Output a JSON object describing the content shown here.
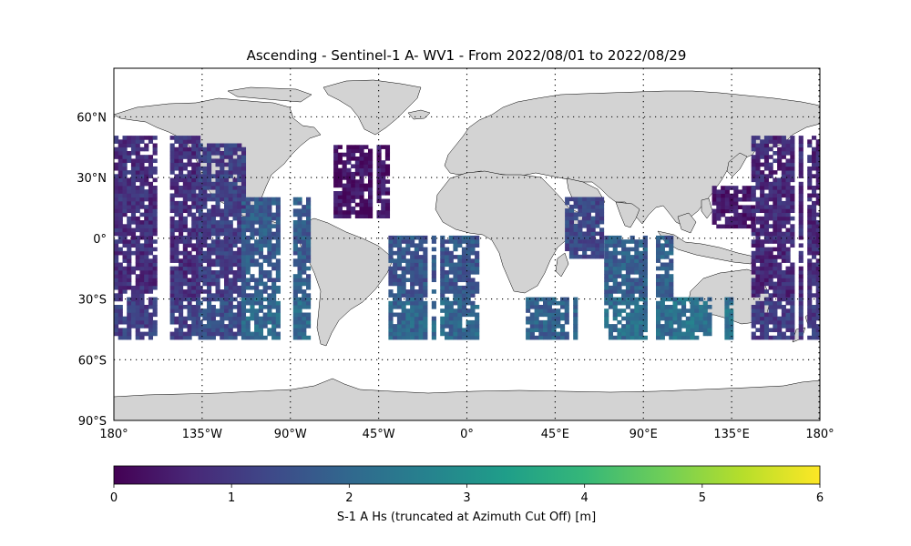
{
  "title": "Ascending - Sentinel-1 A- WV1 - From 2022/08/01 to 2022/08/29",
  "map": {
    "lon_range": [
      -180,
      180
    ],
    "lat_range": [
      -90,
      90
    ],
    "projection": "PlateCarree",
    "land_color": "#d3d3d3",
    "gridlines": "dotted",
    "lat_ticks": [
      {
        "value": 60,
        "label": "60°N"
      },
      {
        "value": 30,
        "label": "30°N"
      },
      {
        "value": 0,
        "label": "0°"
      },
      {
        "value": -30,
        "label": "30°S"
      },
      {
        "value": -60,
        "label": "60°S"
      },
      {
        "value": -90,
        "label": "90°S"
      }
    ],
    "lon_ticks": [
      {
        "value": -180,
        "label": "180°"
      },
      {
        "value": -135,
        "label": "135°W"
      },
      {
        "value": -90,
        "label": "90°W"
      },
      {
        "value": -45,
        "label": "45°W"
      },
      {
        "value": 0,
        "label": "0°"
      },
      {
        "value": 45,
        "label": "45°E"
      },
      {
        "value": 90,
        "label": "90°E"
      },
      {
        "value": 135,
        "label": "135°E"
      },
      {
        "value": 180,
        "label": "180°"
      }
    ]
  },
  "colorbar": {
    "colormap": "viridis",
    "range": [
      0,
      6
    ],
    "ticks": [
      "0",
      "1",
      "2",
      "3",
      "4",
      "5",
      "6"
    ],
    "label": "S-1 A Hs (truncated at Azimuth Cut Off) [m]",
    "stops": [
      "#440154",
      "#482878",
      "#3e4989",
      "#31688e",
      "#26828e",
      "#1f9e89",
      "#35b779",
      "#6ece58",
      "#b5de2b",
      "#fde725"
    ]
  },
  "chart_data": {
    "type": "heatmap",
    "title": "Ascending - Sentinel-1 A- WV1 - From 2022/08/01 to 2022/08/29",
    "xlabel": "",
    "ylabel": "",
    "x_range": [
      -180,
      180
    ],
    "y_range": [
      -90,
      90
    ],
    "value_range": [
      0,
      6
    ],
    "value_label": "S-1 A Hs (truncated at Azimuth Cut Off) [m]",
    "observed_lat_band": [
      -50,
      50
    ],
    "regions": [
      {
        "lon": [
          -180,
          -137
        ],
        "lat": [
          -50,
          50
        ],
        "hs_typical": 0.8
      },
      {
        "lon": [
          -137,
          -115
        ],
        "lat": [
          -50,
          45
        ],
        "hs_typical": 1.1
      },
      {
        "lon": [
          -115,
          -80
        ],
        "lat": [
          -50,
          20
        ],
        "hs_typical": 1.7
      },
      {
        "lon": [
          -68,
          -40
        ],
        "lat": [
          10,
          45
        ],
        "hs_typical": 0.3
      },
      {
        "lon": [
          -40,
          15
        ],
        "lat": [
          -50,
          0
        ],
        "hs_typical": 1.6
      },
      {
        "lon": [
          30,
          55
        ],
        "lat": [
          -50,
          -30
        ],
        "hs_typical": 1.5
      },
      {
        "lon": [
          50,
          70
        ],
        "lat": [
          -10,
          20
        ],
        "hs_typical": 1.3
      },
      {
        "lon": [
          70,
          105
        ],
        "lat": [
          -50,
          0
        ],
        "hs_typical": 1.8
      },
      {
        "lon": [
          105,
          135
        ],
        "lat": [
          -50,
          -30
        ],
        "hs_typical": 1.9
      },
      {
        "lon": [
          125,
          145
        ],
        "lat": [
          5,
          25
        ],
        "hs_typical": 0.4
      },
      {
        "lon": [
          145,
          180
        ],
        "lat": [
          -50,
          50
        ],
        "hs_typical": 0.7
      }
    ]
  }
}
